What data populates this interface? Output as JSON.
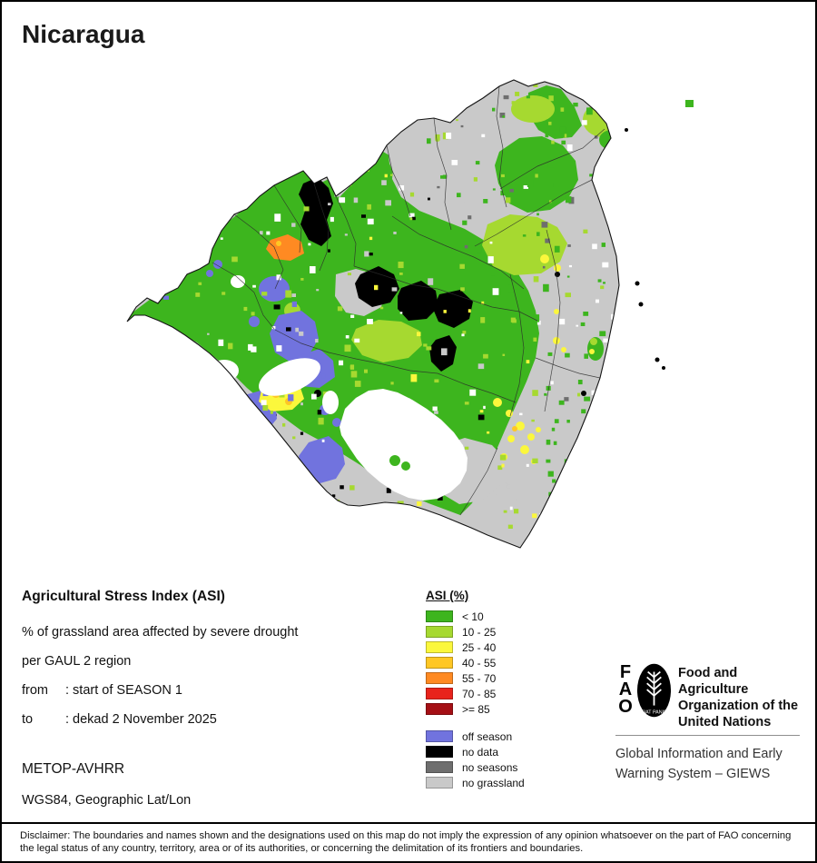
{
  "page": {
    "title": "Nicaragua",
    "background": "#ffffff",
    "border_color": "#000000"
  },
  "map": {
    "region_name": "Nicaragua",
    "colors": {
      "asi_lt10": "#3db51e",
      "asi_10_25": "#a6d930",
      "asi_25_40": "#fbf73c",
      "asi_40_55": "#ffc724",
      "asi_55_70": "#ff8a22",
      "asi_70_85": "#e8231c",
      "asi_ge85": "#a50f15",
      "off_season": "#7173de",
      "no_data": "#000000",
      "no_seasons": "#6e6e6e",
      "no_grassland": "#c9c9c9",
      "water": "#ffffff",
      "boundary": "#141414"
    }
  },
  "legend": {
    "title": "ASI (%)",
    "items": [
      {
        "label": "< 10",
        "color": "#3db51e"
      },
      {
        "label": "10 - 25",
        "color": "#a6d930"
      },
      {
        "label": "25 - 40",
        "color": "#fbf73c"
      },
      {
        "label": "40 - 55",
        "color": "#ffc724"
      },
      {
        "label": "55 - 70",
        "color": "#ff8a22"
      },
      {
        "label": "70 - 85",
        "color": "#e8231c"
      },
      {
        "label": ">= 85",
        "color": "#a50f15"
      }
    ],
    "extra": [
      {
        "label": "off season",
        "color": "#7173de"
      },
      {
        "label": "no data",
        "color": "#000000"
      },
      {
        "label": "no seasons",
        "color": "#6e6e6e"
      },
      {
        "label": "no grassland",
        "color": "#c9c9c9"
      }
    ]
  },
  "info": {
    "heading": "Agricultural Stress Index (ASI)",
    "line1": "% of grassland area affected by severe drought",
    "line2": "per GAUL 2 region",
    "from_label": "from",
    "from_value": ": start of SEASON 1",
    "to_label": "to",
    "to_value": ": dekad 2 November 2025",
    "sensor": "METOP-AVHRR",
    "projection": "WGS84, Geographic Lat/Lon"
  },
  "fao": {
    "logo_letters": "FAO",
    "logo_motto": "FIAT PANIS",
    "org_lines": [
      "Food and Agriculture",
      "Organization of the",
      "United Nations"
    ],
    "giews_lines": [
      "Global Information and Early",
      "Warning System – GIEWS"
    ]
  },
  "disclaimer": "Disclaimer: The boundaries and names shown and the designations used on this map do not imply the expression of any opinion whatsoever on the part of FAO concerning the legal status of any country, territory, area or of its authorities, or concerning the delimitation of its frontiers and boundaries."
}
